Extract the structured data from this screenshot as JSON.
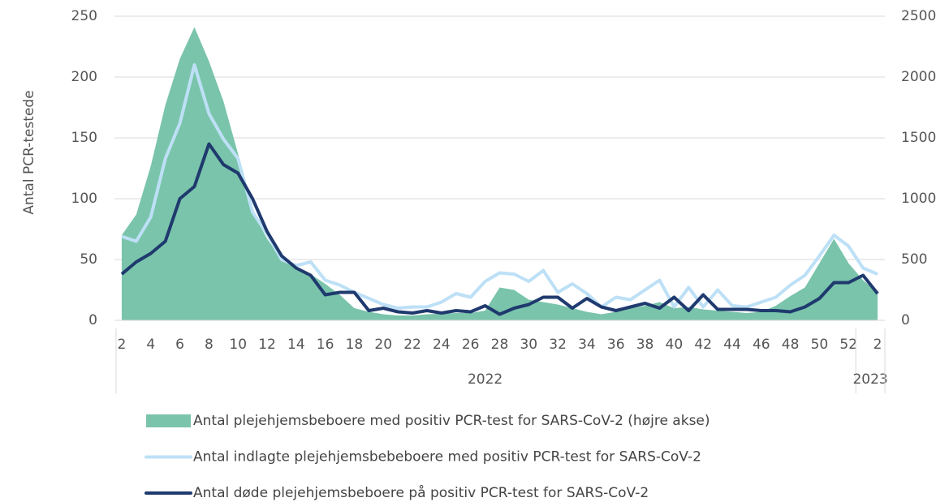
{
  "chart_data": {
    "type": "line",
    "y_label": "Antal PCR-testede",
    "categories": [
      "2",
      null,
      "4",
      null,
      "6",
      null,
      "8",
      null,
      "10",
      null,
      "12",
      null,
      "14",
      null,
      "16",
      null,
      "18",
      null,
      "20",
      null,
      "22",
      null,
      "24",
      null,
      "26",
      null,
      "28",
      null,
      "30",
      null,
      "32",
      null,
      "34",
      null,
      "36",
      null,
      "38",
      null,
      "40",
      null,
      "42",
      null,
      "44",
      null,
      "46",
      null,
      "48",
      null,
      "50",
      null,
      "52",
      null,
      "2"
    ],
    "groups": [
      {
        "label": "2022",
        "count": 51
      },
      {
        "label": "2023",
        "count": 2
      }
    ],
    "ylim": [
      0,
      250
    ],
    "yticks": [
      0,
      50,
      100,
      150,
      200,
      250
    ],
    "y2lim": [
      0,
      2500
    ],
    "y2ticks": [
      0,
      500,
      1000,
      1500,
      2000,
      2500
    ],
    "grid": true,
    "legend": "bottom",
    "series": [
      {
        "name": "Antal plejehjemsbeboere med positiv PCR-test for SARS-CoV-2 (højre akse)",
        "type": "area",
        "axis": "y2",
        "color": "#7ac4ab",
        "values": [
          700,
          870,
          1270,
          1770,
          2150,
          2410,
          2130,
          1800,
          1370,
          890,
          670,
          500,
          430,
          380,
          300,
          210,
          100,
          70,
          50,
          40,
          40,
          50,
          55,
          60,
          60,
          80,
          270,
          250,
          170,
          150,
          130,
          100,
          70,
          50,
          70,
          100,
          120,
          150,
          100,
          110,
          90,
          80,
          70,
          60,
          70,
          120,
          200,
          270,
          470,
          670,
          470,
          330,
          230
        ]
      },
      {
        "name": "Antal indlagte plejehjemsbebeboere med positiv PCR-test for SARS-CoV-2",
        "type": "line",
        "color": "#bde0f6",
        "values": [
          69,
          65,
          85,
          133,
          162,
          210,
          170,
          149,
          133,
          89,
          71,
          50,
          45,
          48,
          33,
          29,
          23,
          18,
          13,
          10,
          11,
          11,
          15,
          22,
          19,
          32,
          39,
          38,
          32,
          41,
          23,
          30,
          22,
          11,
          19,
          17,
          25,
          33,
          11,
          27,
          11,
          25,
          12,
          11,
          15,
          19,
          29,
          37,
          53,
          70,
          61,
          43,
          38
        ]
      },
      {
        "name": "Antal døde plejehjemsbeboere på positiv PCR-test for SARS-CoV-2",
        "type": "line",
        "color": "#1f3a6e",
        "values": [
          38,
          48,
          55,
          65,
          100,
          110,
          145,
          128,
          121,
          100,
          73,
          53,
          43,
          37,
          21,
          23,
          23,
          8,
          10,
          7,
          6,
          8,
          6,
          8,
          7,
          12,
          5,
          10,
          13,
          19,
          19,
          10,
          18,
          11,
          8,
          11,
          14,
          10,
          19,
          8,
          21,
          9,
          9,
          9,
          8,
          8,
          7,
          11,
          18,
          31,
          31,
          37,
          22
        ]
      }
    ]
  }
}
